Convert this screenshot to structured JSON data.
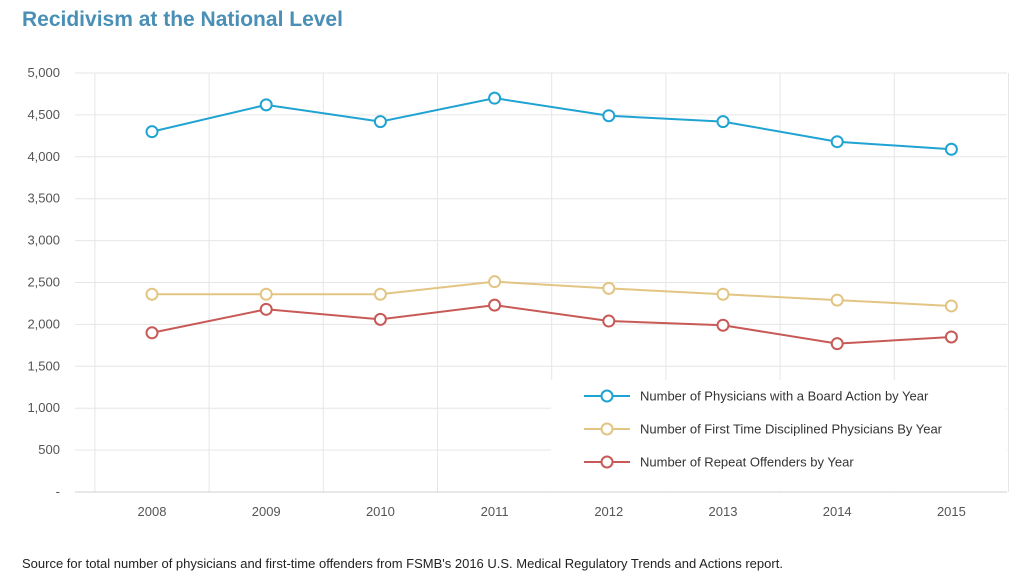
{
  "page": {
    "title": "Recidivism at the National Level",
    "source_note": "Source for total number of physicians and first-time offenders from FSMB's 2016 U.S. Medical Regulatory Trends and Actions report."
  },
  "chart_data": {
    "type": "line",
    "title": "Recidivism at the National Level",
    "xlabel": "",
    "ylabel": "",
    "x": [
      "2008",
      "2009",
      "2010",
      "2011",
      "2012",
      "2013",
      "2014",
      "2015"
    ],
    "y_tick_labels": [
      "-",
      "500",
      "1,000",
      "1,500",
      "2,000",
      "2,500",
      "3,000",
      "3,500",
      "4,000",
      "4,500",
      "5,000"
    ],
    "y_ticks": [
      0,
      500,
      1000,
      1500,
      2000,
      2500,
      3000,
      3500,
      4000,
      4500,
      5000
    ],
    "ylim": [
      0,
      5000
    ],
    "grid": true,
    "legend_position": "bottom-right",
    "series": [
      {
        "name": "Number of Physicians with a Board Action by Year",
        "color": "#1fa3d2",
        "values": [
          4300,
          4620,
          4420,
          4700,
          4490,
          4420,
          4180,
          4090
        ]
      },
      {
        "name": "Number of First Time Disciplined Physicians By Year",
        "color": "#e3c583",
        "values": [
          2360,
          2360,
          2360,
          2510,
          2430,
          2360,
          2290,
          2220
        ]
      },
      {
        "name": "Number of Repeat Offenders by Year",
        "color": "#c75a57",
        "values": [
          1900,
          2180,
          2060,
          2230,
          2040,
          1990,
          1770,
          1850
        ]
      }
    ]
  }
}
